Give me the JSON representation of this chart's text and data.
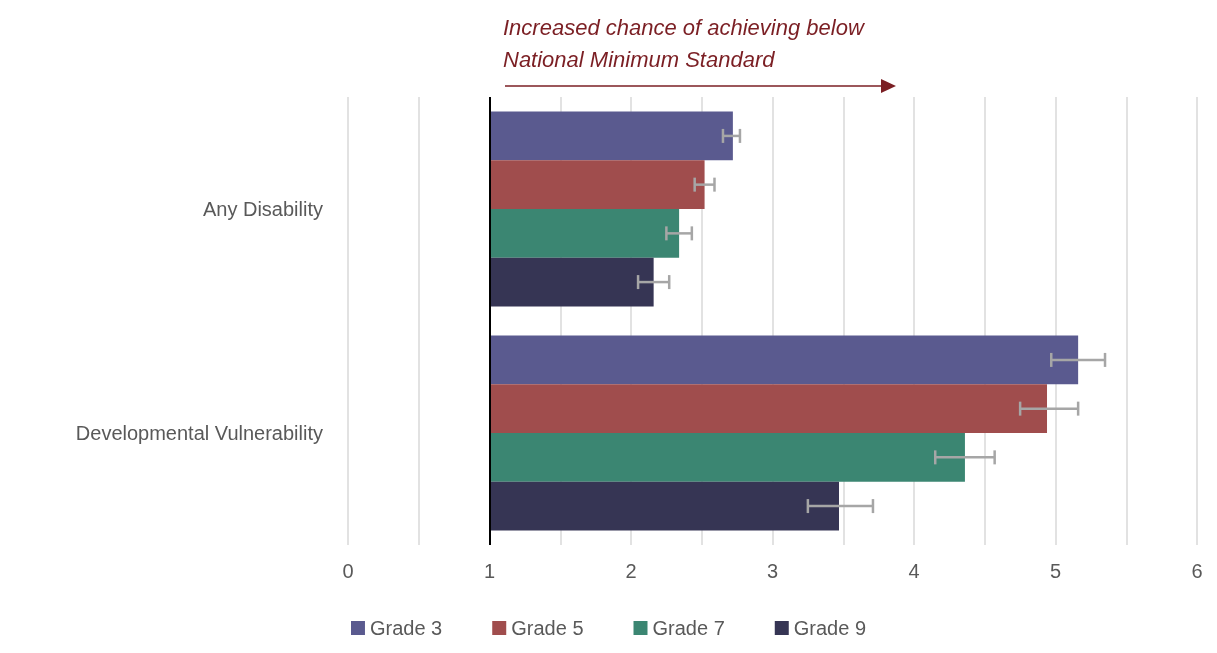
{
  "chart_data": {
    "type": "bar",
    "orientation": "horizontal",
    "annotations": [
      "Increased chance of achieving below National Minimum Standard"
    ],
    "categories": [
      "Any Disability",
      "Developmental Vulnerability"
    ],
    "series": [
      {
        "name": "Grade 3",
        "color": "#5a5a8f",
        "base": [
          1,
          1
        ],
        "values": [
          1.72,
          4.16
        ],
        "errors": [
          [
            2.65,
            2.77
          ],
          [
            4.97,
            5.35
          ]
        ]
      },
      {
        "name": "Grade 5",
        "color": "#a04d4d",
        "base": [
          1,
          1
        ],
        "values": [
          1.52,
          3.94
        ],
        "errors": [
          [
            2.45,
            2.59
          ],
          [
            4.75,
            5.16
          ]
        ]
      },
      {
        "name": "Grade 7",
        "color": "#3b8672",
        "base": [
          1,
          1
        ],
        "values": [
          1.34,
          3.36
        ],
        "errors": [
          [
            2.25,
            2.43
          ],
          [
            4.15,
            4.57
          ]
        ]
      },
      {
        "name": "Grade 9",
        "color": "#363554",
        "base": [
          1,
          1
        ],
        "values": [
          1.16,
          2.47
        ],
        "errors": [
          [
            2.05,
            2.27
          ],
          [
            3.25,
            3.71
          ]
        ]
      }
    ],
    "xlim": [
      0,
      6
    ],
    "xticks": [
      0,
      {
        "value": 0.5,
        "label": null
      },
      1,
      {
        "value": 1.5,
        "label": null
      },
      2,
      {
        "value": 2.5,
        "label": null
      },
      3,
      {
        "value": 3.5,
        "label": null
      },
      4,
      {
        "value": 4.5,
        "label": null
      },
      5,
      {
        "value": 5.5,
        "label": null
      },
      6
    ],
    "ref_lines": [
      {
        "axis": "x",
        "value": 1,
        "color": "#000000"
      }
    ],
    "grid": "x",
    "legend": "bottom"
  }
}
